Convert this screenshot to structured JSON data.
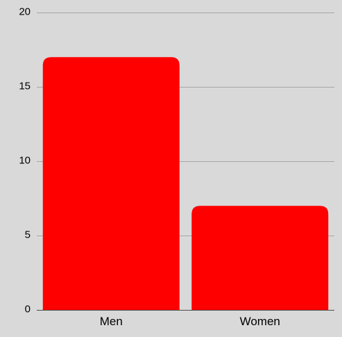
{
  "chart_data": {
    "type": "bar",
    "categories": [
      "Men",
      "Women"
    ],
    "values": [
      17,
      7
    ],
    "title": "",
    "xlabel": "",
    "ylabel": "",
    "ylim": [
      0,
      20
    ],
    "yticks": [
      "0",
      "5",
      "10",
      "15",
      "20"
    ],
    "grid": true,
    "legend": "none",
    "colors": {
      "bar": "#ff0000",
      "background": "#d9d9d9",
      "grid": "#a6a6a6"
    }
  }
}
